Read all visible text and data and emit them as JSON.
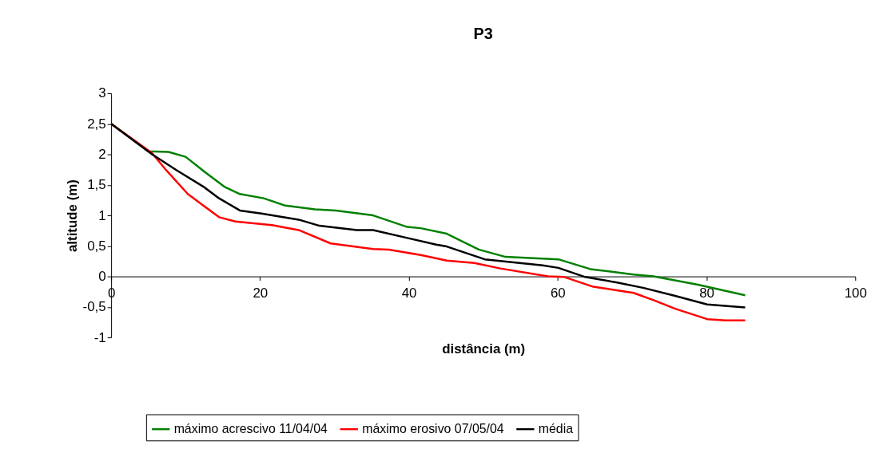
{
  "chart_data": {
    "type": "line",
    "title": "P3",
    "xlabel": "distância (m)",
    "ylabel": "altitude (m)",
    "xlim": [
      0,
      100
    ],
    "xticks": [
      0,
      20,
      40,
      60,
      80,
      100
    ],
    "ylim": [
      -1,
      3
    ],
    "yticks": [
      {
        "value": -1,
        "label": "-1"
      },
      {
        "value": -0.5,
        "label": "-0,5"
      },
      {
        "value": 0,
        "label": "0"
      },
      {
        "value": 0.5,
        "label": "0,5"
      },
      {
        "value": 1,
        "label": "1"
      },
      {
        "value": 1.5,
        "label": "1,5"
      },
      {
        "value": 2,
        "label": "2"
      },
      {
        "value": 2.5,
        "label": "2,5"
      },
      {
        "value": 3,
        "label": "3"
      }
    ],
    "grid": false,
    "legend": "bottom",
    "marker": "none",
    "line_style": "solid",
    "series": [
      {
        "name": "máximo acrescivo 11/04/04",
        "color": "#008000",
        "x": [
          0,
          5,
          7.7,
          10,
          12.7,
          15.2,
          17.3,
          20.5,
          23.4,
          27.4,
          30.2,
          35.2,
          39.8,
          41.6,
          45.1,
          49.4,
          53,
          60.1,
          64.4,
          70.2,
          72.9,
          79,
          85.2
        ],
        "values": [
          2.5,
          2.05,
          2.04,
          1.96,
          1.7,
          1.47,
          1.35,
          1.28,
          1.16,
          1.1,
          1.08,
          1.0,
          0.81,
          0.79,
          0.7,
          0.44,
          0.32,
          0.28,
          0.12,
          0.03,
          0.0,
          -0.14,
          -0.31
        ]
      },
      {
        "name": "máximo erosivo 07/05/04",
        "color": "#ff0000",
        "x": [
          0,
          5.5,
          7.4,
          10.3,
          14.5,
          16.7,
          21.6,
          25.2,
          29.5,
          35.2,
          37.3,
          41.6,
          45.1,
          48.8,
          52.3,
          58.7,
          60.9,
          64.8,
          70.2,
          72.9,
          75.8,
          80.1,
          82.6,
          85.2
        ],
        "values": [
          2.5,
          2.02,
          1.74,
          1.35,
          0.97,
          0.9,
          0.84,
          0.76,
          0.54,
          0.45,
          0.44,
          0.35,
          0.26,
          0.22,
          0.13,
          0.0,
          -0.01,
          -0.17,
          -0.27,
          -0.39,
          -0.53,
          -0.7,
          -0.72,
          -0.72
        ]
      },
      {
        "name": "média",
        "color": "#000000",
        "x": [
          0,
          5.5,
          8.8,
          12.4,
          14.5,
          17.3,
          20.2,
          25.2,
          28,
          33,
          35.2,
          39.8,
          43.7,
          45.1,
          50.2,
          58,
          60.1,
          63.7,
          68,
          71.6,
          75.8,
          80.1,
          85.2
        ],
        "values": [
          2.5,
          2.0,
          1.74,
          1.47,
          1.28,
          1.08,
          1.03,
          0.93,
          0.83,
          0.76,
          0.76,
          0.63,
          0.52,
          0.49,
          0.28,
          0.18,
          0.14,
          -0.01,
          -0.1,
          -0.19,
          -0.32,
          -0.46,
          -0.51
        ]
      }
    ]
  }
}
